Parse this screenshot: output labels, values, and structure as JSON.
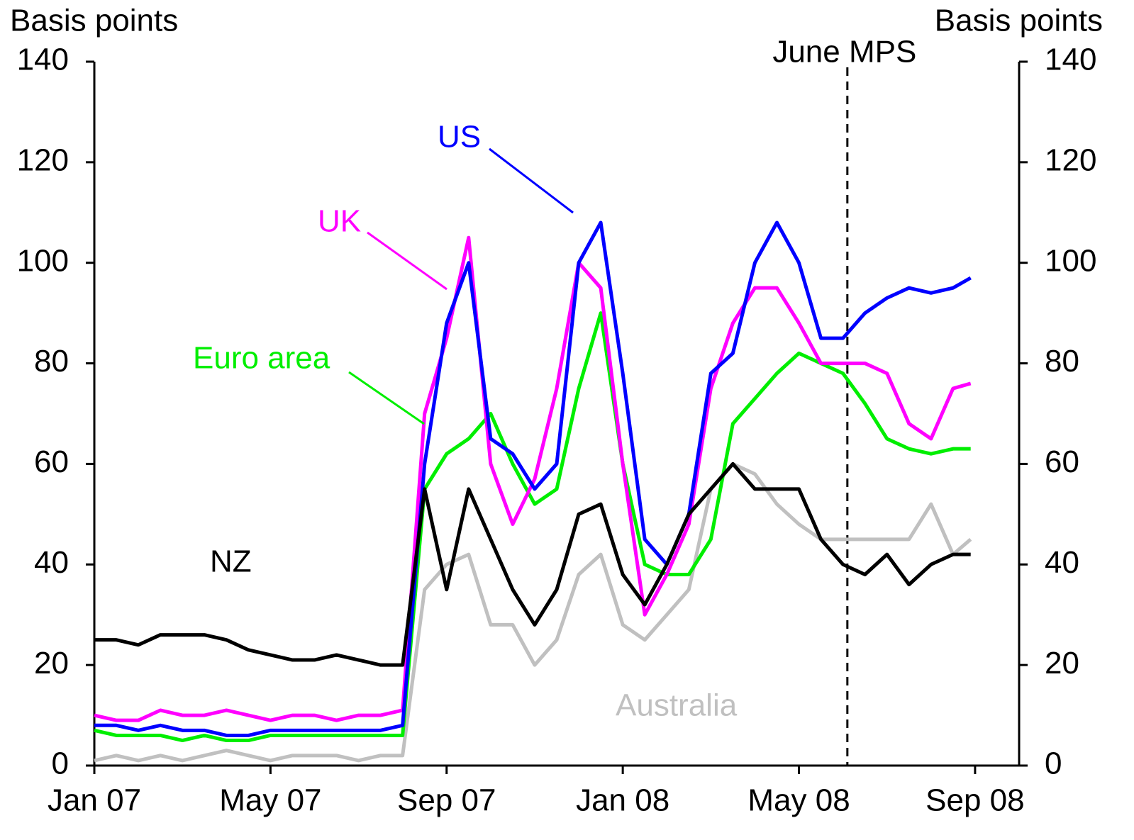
{
  "chart_data": {
    "type": "line",
    "y_label": "Basis points",
    "y2_label": "Basis points",
    "x": [
      0,
      0.5,
      1,
      1.5,
      2,
      2.5,
      3,
      3.5,
      4,
      4.5,
      5,
      5.5,
      6,
      6.5,
      7,
      7.5,
      8,
      8.5,
      9,
      9.5,
      10,
      10.5,
      11,
      11.5,
      12,
      12.5,
      13,
      13.5,
      14,
      14.5,
      15,
      15.5,
      16,
      16.5,
      17,
      17.5,
      18,
      18.5,
      19,
      19.5,
      19.9
    ],
    "xlim": [
      0,
      21
    ],
    "xticks": [
      {
        "value": 0,
        "label": "Jan 07"
      },
      {
        "value": 4,
        "label": "May 07"
      },
      {
        "value": 8,
        "label": "Sep 07"
      },
      {
        "value": 12,
        "label": "Jan 08"
      },
      {
        "value": 16,
        "label": "May 08"
      },
      {
        "value": 20,
        "label": "Sep 08"
      }
    ],
    "ylim": [
      0,
      140
    ],
    "yticks": [
      0,
      20,
      40,
      60,
      80,
      100,
      120,
      140
    ],
    "y2lim": [
      0,
      140
    ],
    "y2ticks": [
      0,
      20,
      40,
      60,
      80,
      100,
      120,
      140
    ],
    "vline": {
      "x": 17.1,
      "label": "June MPS"
    },
    "series": [
      {
        "name": "Australia",
        "color": "#c0c0c0",
        "values": [
          1,
          2,
          1,
          2,
          1,
          2,
          3,
          2,
          1,
          2,
          2,
          2,
          1,
          2,
          2,
          35,
          40,
          42,
          28,
          28,
          20,
          25,
          38,
          42,
          28,
          25,
          30,
          35,
          55,
          60,
          58,
          52,
          48,
          45,
          45,
          45,
          45,
          45,
          52,
          42,
          45
        ]
      },
      {
        "name": "Euro area",
        "color": "#00ee00",
        "values": [
          7,
          6,
          6,
          6,
          5,
          6,
          5,
          5,
          6,
          6,
          6,
          6,
          6,
          6,
          6,
          55,
          62,
          65,
          70,
          60,
          52,
          55,
          75,
          90,
          60,
          40,
          38,
          38,
          45,
          68,
          73,
          78,
          82,
          80,
          78,
          72,
          65,
          63,
          62,
          63,
          63
        ]
      },
      {
        "name": "UK",
        "color": "#ff00ff",
        "values": [
          10,
          9,
          9,
          11,
          10,
          10,
          11,
          10,
          9,
          10,
          10,
          9,
          10,
          10,
          11,
          70,
          85,
          105,
          60,
          48,
          57,
          75,
          100,
          95,
          60,
          30,
          38,
          48,
          75,
          88,
          95,
          95,
          88,
          80,
          80,
          80,
          78,
          68,
          65,
          75,
          76
        ]
      },
      {
        "name": "US",
        "color": "#0000ff",
        "values": [
          8,
          8,
          7,
          8,
          7,
          7,
          6,
          6,
          7,
          7,
          7,
          7,
          7,
          7,
          8,
          60,
          88,
          100,
          65,
          62,
          55,
          60,
          100,
          108,
          78,
          45,
          40,
          50,
          78,
          82,
          100,
          108,
          100,
          85,
          85,
          90,
          93,
          95,
          94,
          95,
          97
        ]
      },
      {
        "name": "NZ",
        "color": "#000000",
        "values": [
          25,
          25,
          24,
          26,
          26,
          26,
          25,
          23,
          22,
          21,
          21,
          22,
          21,
          20,
          20,
          55,
          35,
          55,
          45,
          35,
          28,
          35,
          50,
          52,
          38,
          32,
          40,
          50,
          55,
          60,
          55,
          55,
          55,
          45,
          40,
          38,
          42,
          36,
          40,
          42,
          42
        ]
      }
    ]
  }
}
